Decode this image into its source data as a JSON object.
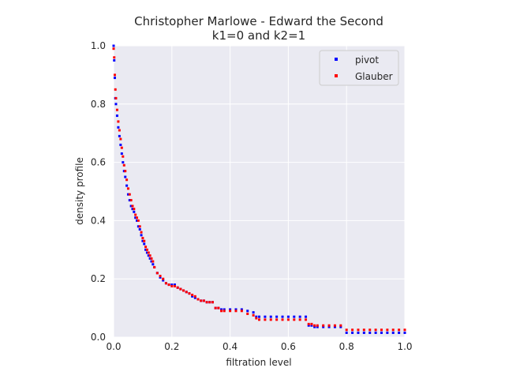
{
  "chart_data": {
    "type": "scatter",
    "title": "Christopher Marlowe - Edward the Second",
    "subtitle": "k1=0 and k2=1",
    "xlabel": "filtration level",
    "ylabel": "density profile",
    "xlim": [
      0,
      1
    ],
    "ylim": [
      0,
      1
    ],
    "xticks": [
      "0.0",
      "0.2",
      "0.4",
      "0.6",
      "0.8",
      "1.0"
    ],
    "yticks": [
      "0.0",
      "0.2",
      "0.4",
      "0.6",
      "0.8",
      "1.0"
    ],
    "grid": true,
    "legend_position": "top-right",
    "series": [
      {
        "name": "pivot",
        "color": "#0000ff",
        "points": [
          [
            0.0,
            1.0
          ],
          [
            0.002,
            0.95
          ],
          [
            0.004,
            0.89
          ],
          [
            0.006,
            0.82
          ],
          [
            0.008,
            0.8
          ],
          [
            0.012,
            0.76
          ],
          [
            0.016,
            0.72
          ],
          [
            0.02,
            0.69
          ],
          [
            0.024,
            0.66
          ],
          [
            0.028,
            0.63
          ],
          [
            0.032,
            0.6
          ],
          [
            0.036,
            0.57
          ],
          [
            0.04,
            0.55
          ],
          [
            0.045,
            0.52
          ],
          [
            0.05,
            0.49
          ],
          [
            0.055,
            0.47
          ],
          [
            0.06,
            0.45
          ],
          [
            0.065,
            0.44
          ],
          [
            0.07,
            0.43
          ],
          [
            0.075,
            0.41
          ],
          [
            0.08,
            0.4
          ],
          [
            0.085,
            0.38
          ],
          [
            0.09,
            0.37
          ],
          [
            0.095,
            0.35
          ],
          [
            0.1,
            0.33
          ],
          [
            0.105,
            0.32
          ],
          [
            0.11,
            0.3
          ],
          [
            0.115,
            0.29
          ],
          [
            0.12,
            0.28
          ],
          [
            0.125,
            0.27
          ],
          [
            0.13,
            0.26
          ],
          [
            0.135,
            0.25
          ],
          [
            0.14,
            0.24
          ],
          [
            0.15,
            0.22
          ],
          [
            0.16,
            0.205
          ],
          [
            0.17,
            0.195
          ],
          [
            0.18,
            0.185
          ],
          [
            0.19,
            0.18
          ],
          [
            0.2,
            0.18
          ],
          [
            0.21,
            0.18
          ],
          [
            0.22,
            0.17
          ],
          [
            0.23,
            0.165
          ],
          [
            0.24,
            0.16
          ],
          [
            0.25,
            0.155
          ],
          [
            0.26,
            0.15
          ],
          [
            0.27,
            0.14
          ],
          [
            0.28,
            0.135
          ],
          [
            0.29,
            0.13
          ],
          [
            0.3,
            0.125
          ],
          [
            0.31,
            0.125
          ],
          [
            0.32,
            0.12
          ],
          [
            0.33,
            0.12
          ],
          [
            0.34,
            0.12
          ],
          [
            0.35,
            0.1
          ],
          [
            0.36,
            0.1
          ],
          [
            0.37,
            0.095
          ],
          [
            0.38,
            0.095
          ],
          [
            0.4,
            0.095
          ],
          [
            0.42,
            0.095
          ],
          [
            0.44,
            0.095
          ],
          [
            0.46,
            0.09
          ],
          [
            0.48,
            0.085
          ],
          [
            0.49,
            0.07
          ],
          [
            0.5,
            0.07
          ],
          [
            0.52,
            0.07
          ],
          [
            0.54,
            0.07
          ],
          [
            0.56,
            0.07
          ],
          [
            0.58,
            0.07
          ],
          [
            0.6,
            0.07
          ],
          [
            0.62,
            0.07
          ],
          [
            0.64,
            0.07
          ],
          [
            0.66,
            0.07
          ],
          [
            0.67,
            0.04
          ],
          [
            0.68,
            0.04
          ],
          [
            0.69,
            0.035
          ],
          [
            0.7,
            0.035
          ],
          [
            0.72,
            0.035
          ],
          [
            0.74,
            0.035
          ],
          [
            0.76,
            0.035
          ],
          [
            0.78,
            0.035
          ],
          [
            0.8,
            0.015
          ],
          [
            0.82,
            0.015
          ],
          [
            0.84,
            0.015
          ],
          [
            0.86,
            0.015
          ],
          [
            0.88,
            0.015
          ],
          [
            0.9,
            0.015
          ],
          [
            0.92,
            0.015
          ],
          [
            0.94,
            0.015
          ],
          [
            0.96,
            0.015
          ],
          [
            0.98,
            0.015
          ],
          [
            1.0,
            0.015
          ]
        ]
      },
      {
        "name": "Glauber",
        "color": "#ff0000",
        "points": [
          [
            0.0,
            0.99
          ],
          [
            0.002,
            0.96
          ],
          [
            0.004,
            0.9
          ],
          [
            0.006,
            0.85
          ],
          [
            0.008,
            0.82
          ],
          [
            0.012,
            0.78
          ],
          [
            0.016,
            0.74
          ],
          [
            0.02,
            0.71
          ],
          [
            0.024,
            0.68
          ],
          [
            0.028,
            0.65
          ],
          [
            0.032,
            0.62
          ],
          [
            0.036,
            0.59
          ],
          [
            0.04,
            0.57
          ],
          [
            0.045,
            0.54
          ],
          [
            0.05,
            0.51
          ],
          [
            0.055,
            0.49
          ],
          [
            0.06,
            0.47
          ],
          [
            0.065,
            0.45
          ],
          [
            0.07,
            0.44
          ],
          [
            0.075,
            0.42
          ],
          [
            0.08,
            0.41
          ],
          [
            0.085,
            0.4
          ],
          [
            0.09,
            0.38
          ],
          [
            0.095,
            0.36
          ],
          [
            0.1,
            0.34
          ],
          [
            0.105,
            0.33
          ],
          [
            0.11,
            0.31
          ],
          [
            0.115,
            0.3
          ],
          [
            0.12,
            0.29
          ],
          [
            0.125,
            0.28
          ],
          [
            0.13,
            0.27
          ],
          [
            0.135,
            0.26
          ],
          [
            0.14,
            0.24
          ],
          [
            0.15,
            0.22
          ],
          [
            0.16,
            0.21
          ],
          [
            0.17,
            0.2
          ],
          [
            0.18,
            0.185
          ],
          [
            0.19,
            0.18
          ],
          [
            0.2,
            0.175
          ],
          [
            0.21,
            0.175
          ],
          [
            0.22,
            0.17
          ],
          [
            0.23,
            0.165
          ],
          [
            0.24,
            0.16
          ],
          [
            0.25,
            0.155
          ],
          [
            0.26,
            0.15
          ],
          [
            0.27,
            0.145
          ],
          [
            0.28,
            0.14
          ],
          [
            0.29,
            0.13
          ],
          [
            0.3,
            0.125
          ],
          [
            0.31,
            0.125
          ],
          [
            0.32,
            0.12
          ],
          [
            0.33,
            0.12
          ],
          [
            0.34,
            0.12
          ],
          [
            0.35,
            0.1
          ],
          [
            0.36,
            0.1
          ],
          [
            0.37,
            0.09
          ],
          [
            0.38,
            0.09
          ],
          [
            0.4,
            0.09
          ],
          [
            0.42,
            0.09
          ],
          [
            0.44,
            0.09
          ],
          [
            0.46,
            0.08
          ],
          [
            0.48,
            0.075
          ],
          [
            0.49,
            0.065
          ],
          [
            0.5,
            0.06
          ],
          [
            0.52,
            0.06
          ],
          [
            0.54,
            0.06
          ],
          [
            0.56,
            0.06
          ],
          [
            0.58,
            0.06
          ],
          [
            0.6,
            0.06
          ],
          [
            0.62,
            0.06
          ],
          [
            0.64,
            0.06
          ],
          [
            0.66,
            0.06
          ],
          [
            0.67,
            0.045
          ],
          [
            0.68,
            0.045
          ],
          [
            0.69,
            0.04
          ],
          [
            0.7,
            0.04
          ],
          [
            0.72,
            0.04
          ],
          [
            0.74,
            0.04
          ],
          [
            0.76,
            0.04
          ],
          [
            0.78,
            0.04
          ],
          [
            0.8,
            0.025
          ],
          [
            0.82,
            0.025
          ],
          [
            0.84,
            0.025
          ],
          [
            0.86,
            0.025
          ],
          [
            0.88,
            0.025
          ],
          [
            0.9,
            0.025
          ],
          [
            0.92,
            0.025
          ],
          [
            0.94,
            0.025
          ],
          [
            0.96,
            0.025
          ],
          [
            0.98,
            0.025
          ],
          [
            1.0,
            0.025
          ]
        ]
      }
    ]
  },
  "colors": {
    "plot_background": "#eaeaf2",
    "grid": "#ffffff",
    "text": "#262626"
  }
}
